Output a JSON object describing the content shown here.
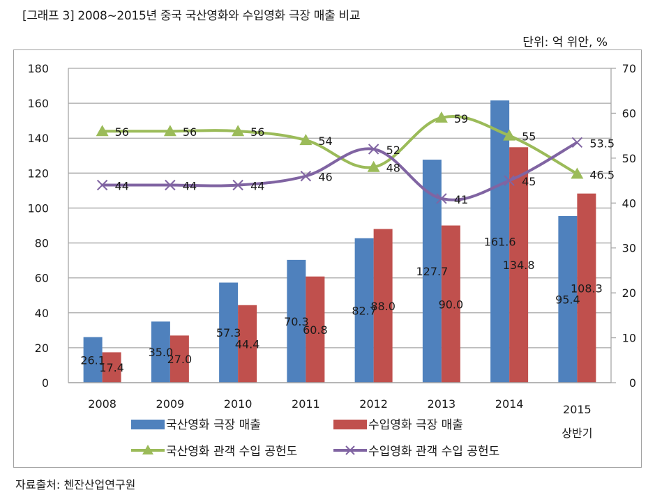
{
  "header": {
    "title": "[그래프 3] 2008~2015년 중국 국산영화와 수입영화 극장 매출 비교",
    "unit": "단위: 억 위안, %"
  },
  "footer": {
    "source": "자료출처: 첸잔산업연구원"
  },
  "colors": {
    "domestic_bar": "#4f81bd",
    "import_bar": "#c0504d",
    "domestic_line": "#9bbb59",
    "import_line": "#8064a2",
    "grid": "#a6a6a6"
  },
  "chart_data": {
    "type": "bar",
    "title": "2008~2015년 중국 국산영화와 수입영화 극장 매출 비교",
    "categories": [
      "2008",
      "2009",
      "2010",
      "2011",
      "2012",
      "2013",
      "2014",
      "2015\n상반기"
    ],
    "category_lines": [
      [
        "2008"
      ],
      [
        "2009"
      ],
      [
        "2010"
      ],
      [
        "2011"
      ],
      [
        "2012"
      ],
      [
        "2013"
      ],
      [
        "2014"
      ],
      [
        "2015",
        "상반기"
      ]
    ],
    "y_left": {
      "range": [
        0,
        180
      ],
      "ticks": [
        0,
        20,
        40,
        60,
        80,
        100,
        120,
        140,
        160,
        180
      ],
      "unit": "억 위안"
    },
    "y_right": {
      "range": [
        0,
        70
      ],
      "ticks": [
        0,
        10,
        20,
        30,
        40,
        50,
        60,
        70
      ],
      "unit": "%"
    },
    "grid": true,
    "legend_position": "bottom",
    "series": [
      {
        "name": "국산영화 극장 매출",
        "type": "bar",
        "axis": "left",
        "values": [
          26.1,
          35.0,
          57.3,
          70.3,
          82.7,
          127.7,
          161.6,
          95.4
        ],
        "labels": [
          "26.1",
          "35.0",
          "57.3",
          "70.3",
          "82.7",
          "127.7",
          "161.6",
          "95.4"
        ]
      },
      {
        "name": "수입영화 극장 매출",
        "type": "bar",
        "axis": "left",
        "values": [
          17.4,
          27.0,
          44.4,
          60.8,
          88.0,
          90.0,
          134.8,
          108.3
        ],
        "labels": [
          "17.4",
          "27.0",
          "44.4",
          "60.8",
          "88.0",
          "90.0",
          "134.8",
          "108.3"
        ]
      },
      {
        "name": "국산영화 관객 수입 공헌도",
        "type": "line",
        "axis": "right",
        "marker": "triangle",
        "values": [
          56,
          56,
          56,
          54,
          48,
          59,
          55,
          46.5
        ],
        "labels": [
          "56",
          "56",
          "56",
          "54",
          "48",
          "59",
          "55",
          "46.5"
        ]
      },
      {
        "name": "수입영화 관객 수입 공헌도",
        "type": "line",
        "axis": "right",
        "marker": "x",
        "values": [
          44,
          44,
          44,
          46,
          52,
          41,
          45,
          53.5
        ],
        "labels": [
          "44",
          "44",
          "44",
          "46",
          "52",
          "41",
          "45",
          "53.5"
        ]
      }
    ]
  }
}
